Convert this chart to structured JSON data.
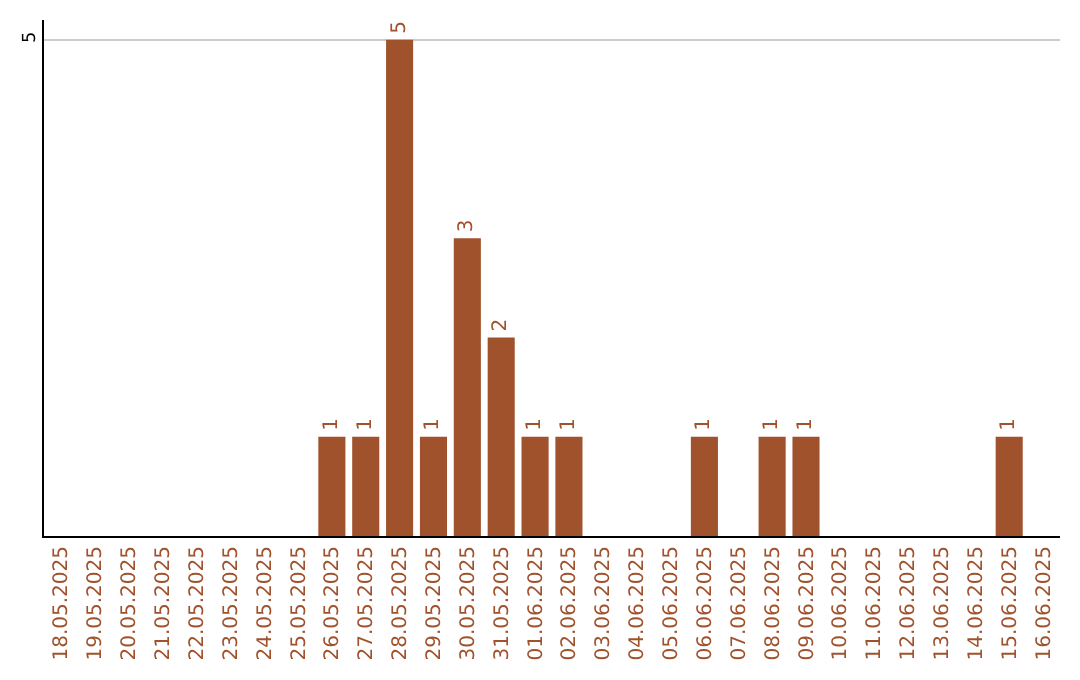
{
  "chart_data": {
    "type": "bar",
    "categories": [
      "18.05.2025",
      "19.05.2025",
      "20.05.2025",
      "21.05.2025",
      "22.05.2025",
      "23.05.2025",
      "24.05.2025",
      "25.05.2025",
      "26.05.2025",
      "27.05.2025",
      "28.05.2025",
      "29.05.2025",
      "30.05.2025",
      "31.05.2025",
      "01.06.2025",
      "02.06.2025",
      "03.06.2025",
      "04.06.2025",
      "05.06.2025",
      "06.06.2025",
      "07.06.2025",
      "08.06.2025",
      "09.06.2025",
      "10.06.2025",
      "11.06.2025",
      "12.06.2025",
      "13.06.2025",
      "14.06.2025",
      "15.06.2025",
      "16.06.2025"
    ],
    "values": [
      0,
      0,
      0,
      0,
      0,
      0,
      0,
      0,
      1,
      1,
      5,
      1,
      3,
      2,
      1,
      1,
      0,
      0,
      0,
      1,
      0,
      1,
      1,
      0,
      0,
      0,
      0,
      0,
      1,
      0
    ],
    "value_labels": [
      null,
      null,
      null,
      null,
      null,
      null,
      null,
      null,
      "1",
      "1",
      "5",
      "1",
      "3",
      "2",
      "1",
      "1",
      null,
      null,
      null,
      "1",
      null,
      "1",
      "1",
      null,
      null,
      null,
      null,
      null,
      "1",
      null
    ],
    "color": "#a0522d",
    "ylim": [
      0,
      5.2
    ],
    "yticks": [
      5
    ],
    "grid": "y",
    "legend": false
  }
}
